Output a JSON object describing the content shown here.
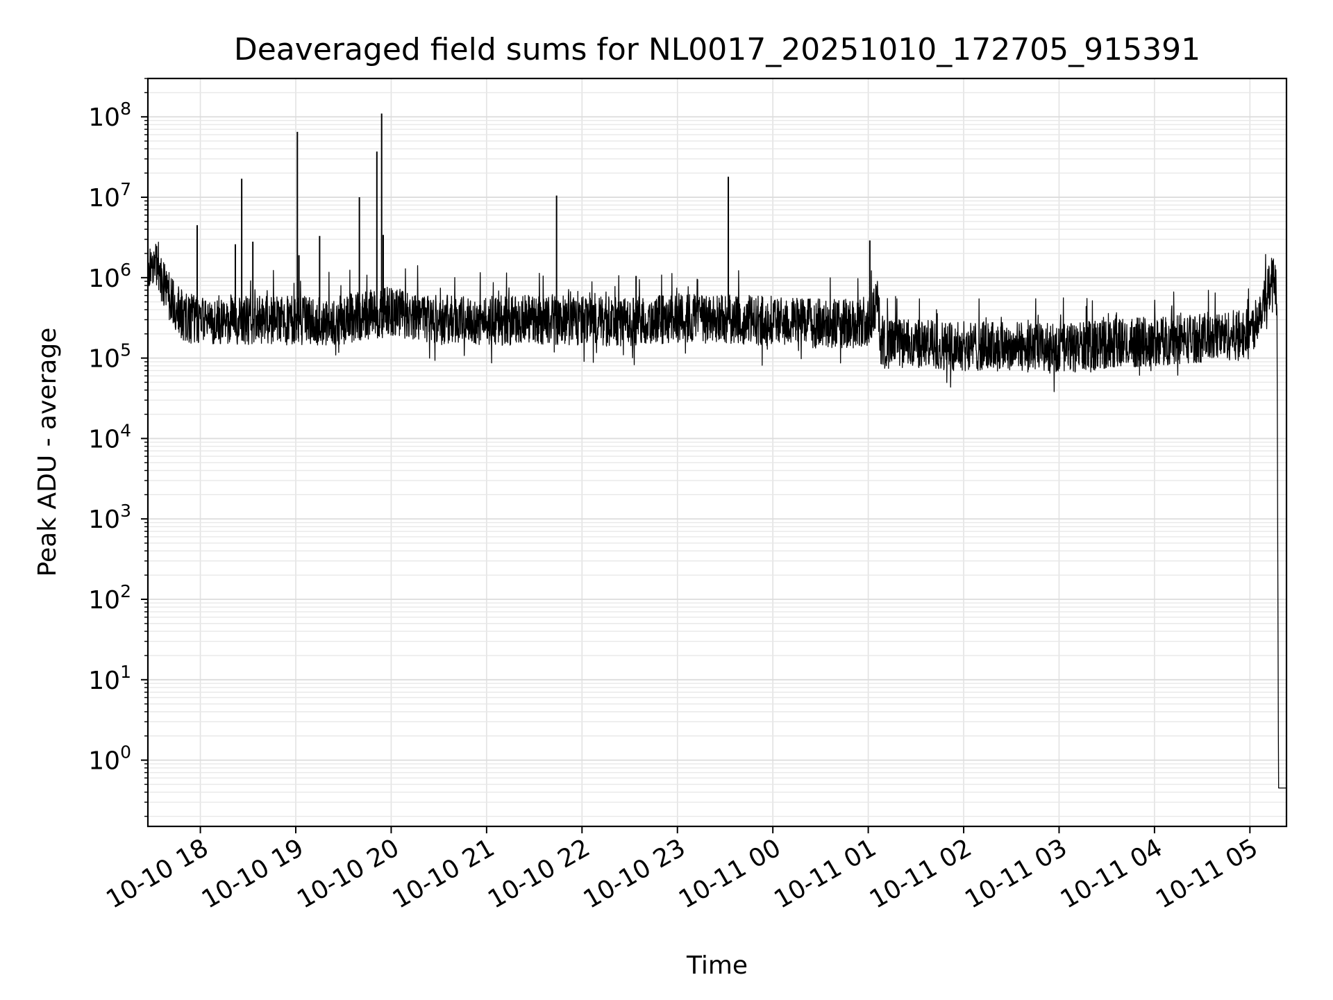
{
  "chart_data": {
    "type": "line",
    "title": "Deaveraged field sums for NL0017_20251010_172705_915391",
    "xlabel": "Time",
    "ylabel": "Peak ADU - average",
    "yscale": "log",
    "xlim": [
      "2025-10-10 17:27",
      "2025-10-11 05:23"
    ],
    "ylim": [
      0.15,
      300000000.0
    ],
    "grid": true,
    "line_color": "#000000",
    "x_ticks": [
      {
        "t": "2025-10-10 18:00",
        "label": "10-10 18"
      },
      {
        "t": "2025-10-10 19:00",
        "label": "10-10 19"
      },
      {
        "t": "2025-10-10 20:00",
        "label": "10-10 20"
      },
      {
        "t": "2025-10-10 21:00",
        "label": "10-10 21"
      },
      {
        "t": "2025-10-10 22:00",
        "label": "10-10 22"
      },
      {
        "t": "2025-10-10 23:00",
        "label": "10-10 23"
      },
      {
        "t": "2025-10-11 00:00",
        "label": "10-11 00"
      },
      {
        "t": "2025-10-11 01:00",
        "label": "10-11 01"
      },
      {
        "t": "2025-10-11 02:00",
        "label": "10-11 02"
      },
      {
        "t": "2025-10-11 03:00",
        "label": "10-11 03"
      },
      {
        "t": "2025-10-11 04:00",
        "label": "10-11 04"
      },
      {
        "t": "2025-10-11 05:00",
        "label": "10-11 05"
      }
    ],
    "y_ticks": [
      {
        "exp": 0,
        "base": "10",
        "sup": "0"
      },
      {
        "exp": 1,
        "base": "10",
        "sup": "1"
      },
      {
        "exp": 2,
        "base": "10",
        "sup": "2"
      },
      {
        "exp": 3,
        "base": "10",
        "sup": "3"
      },
      {
        "exp": 4,
        "base": "10",
        "sup": "4"
      },
      {
        "exp": 5,
        "base": "10",
        "sup": "5"
      },
      {
        "exp": 6,
        "base": "10",
        "sup": "6"
      },
      {
        "exp": 7,
        "base": "10",
        "sup": "7"
      },
      {
        "exp": 8,
        "base": "10",
        "sup": "8"
      }
    ],
    "series": [
      {
        "x": [
          "2025-10-10 17:27",
          "2025-10-10 17:30",
          "2025-10-10 17:33",
          "2025-10-10 17:36",
          "2025-10-10 17:40",
          "2025-10-10 17:45",
          "2025-10-10 17:50",
          "2025-10-10 18:00",
          "2025-10-10 18:30",
          "2025-10-10 19:00",
          "2025-10-10 19:30",
          "2025-10-10 19:45",
          "2025-10-10 20:00",
          "2025-10-10 20:30",
          "2025-10-10 21:00",
          "2025-10-10 21:30",
          "2025-10-10 22:00",
          "2025-10-10 22:30",
          "2025-10-10 23:00",
          "2025-10-10 23:30",
          "2025-10-11 00:00",
          "2025-10-11 00:30",
          "2025-10-11 01:00",
          "2025-10-11 01:06",
          "2025-10-11 01:08",
          "2025-10-11 01:30",
          "2025-10-11 02:00",
          "2025-10-11 02:30",
          "2025-10-11 03:00",
          "2025-10-11 03:30",
          "2025-10-11 04:00",
          "2025-10-11 04:30",
          "2025-10-11 05:00",
          "2025-10-11 05:10",
          "2025-10-11 05:14",
          "2025-10-11 05:17",
          "2025-10-11 05:18",
          "2025-10-11 05:23"
        ],
        "y": [
          1500000,
          1700000,
          1300000,
          900000,
          600000,
          400000,
          320000,
          300000,
          300000,
          290000,
          300000,
          350000,
          380000,
          300000,
          290000,
          300000,
          290000,
          280000,
          310000,
          300000,
          290000,
          270000,
          260000,
          500000,
          150000,
          150000,
          140000,
          140000,
          130000,
          150000,
          160000,
          180000,
          200000,
          600000,
          1000000,
          600000,
          0.45,
          0.45
        ],
        "spikes": [
          {
            "x": "2025-10-10 17:58",
            "y": 4500000
          },
          {
            "x": "2025-10-10 18:22",
            "y": 2600000
          },
          {
            "x": "2025-10-10 18:26",
            "y": 17000000
          },
          {
            "x": "2025-10-10 18:33",
            "y": 2800000
          },
          {
            "x": "2025-10-10 19:01",
            "y": 65000000
          },
          {
            "x": "2025-10-10 19:02",
            "y": 1900000
          },
          {
            "x": "2025-10-10 19:15",
            "y": 3300000
          },
          {
            "x": "2025-10-10 19:40",
            "y": 10000000
          },
          {
            "x": "2025-10-10 19:51",
            "y": 37000000
          },
          {
            "x": "2025-10-10 19:54",
            "y": 110000000
          },
          {
            "x": "2025-10-10 19:55",
            "y": 3400000
          },
          {
            "x": "2025-10-10 21:44",
            "y": 10500000
          },
          {
            "x": "2025-10-10 22:34",
            "y": 1050000
          },
          {
            "x": "2025-10-10 23:32",
            "y": 18000000
          },
          {
            "x": "2025-10-11 01:01",
            "y": 2900000
          }
        ]
      }
    ]
  }
}
